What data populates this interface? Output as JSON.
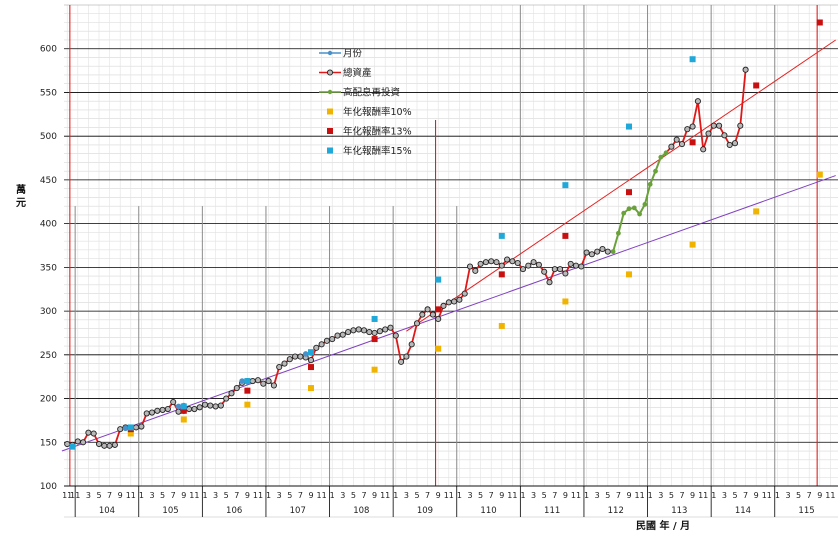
{
  "chart_data": {
    "type": "line",
    "title": "",
    "ylabel": "萬元",
    "xlabel": "民國 年 / 月",
    "ylim": [
      100,
      650
    ],
    "yticks": [
      100,
      150,
      200,
      250,
      300,
      350,
      400,
      450,
      500,
      550,
      600
    ],
    "grid": true,
    "legend_position": "top-center",
    "colors": {
      "total": "#e01818",
      "dividend": "#6aa13a",
      "monthly": "#4a90c8",
      "r10": "#f0b400",
      "r13": "#c81010",
      "r15": "#20a8d8",
      "trend_red": "#e82020",
      "trend_purple": "#8040c0"
    },
    "years": [
      "104",
      "105",
      "106",
      "107",
      "108",
      "109",
      "110",
      "111",
      "112",
      "113",
      "114",
      "115"
    ],
    "month_tick_labels": [
      "1",
      "3",
      "5",
      "7",
      "9",
      "11"
    ],
    "pre_tick_labels": [
      "11",
      "1"
    ],
    "legend": [
      {
        "key": "monthly",
        "label": "月份",
        "style": "line-dot"
      },
      {
        "key": "total",
        "label": "總資產",
        "style": "line-ring"
      },
      {
        "key": "dividend",
        "label": "高配息再投資",
        "style": "line-dot"
      },
      {
        "key": "r10",
        "label": "年化報酬率10%",
        "style": "square"
      },
      {
        "key": "r13",
        "label": "年化報酬率13%",
        "style": "square"
      },
      {
        "key": "r15",
        "label": "年化報酬率15%",
        "style": "square"
      }
    ],
    "x_note": "x values are month indexes counted from 103/11 (0 = 103/11)",
    "total_assets": [
      148,
      147,
      151,
      150,
      161,
      160,
      148,
      146,
      146,
      147,
      165,
      167,
      166,
      167,
      168,
      183,
      184,
      186,
      187,
      188,
      196,
      185,
      186,
      188,
      188,
      190,
      193,
      192,
      191,
      192,
      200,
      206,
      212,
      218,
      220,
      220,
      221,
      217,
      220,
      215,
      236,
      240,
      245,
      248,
      248,
      247,
      244,
      258,
      262,
      266,
      268,
      272,
      273,
      276,
      278,
      279,
      278,
      276,
      275,
      277,
      279,
      281,
      272,
      242,
      248,
      262,
      286,
      296,
      302,
      296,
      291,
      306,
      310,
      311,
      313,
      320,
      351,
      346,
      354,
      356,
      357,
      356,
      352,
      359,
      357,
      355,
      348,
      352,
      356,
      353,
      345,
      333,
      348,
      348,
      343,
      354,
      352,
      351,
      367,
      365,
      368,
      371,
      368
    ],
    "dividend_reinvest": [
      {
        "x": 103,
        "y": 368
      },
      {
        "x": 104,
        "y": 389
      },
      {
        "x": 105,
        "y": 412
      },
      {
        "x": 106,
        "y": 417
      },
      {
        "x": 107,
        "y": 418
      },
      {
        "x": 108,
        "y": 411
      },
      {
        "x": 109,
        "y": 422
      },
      {
        "x": 110,
        "y": 445
      },
      {
        "x": 111,
        "y": 460
      },
      {
        "x": 112,
        "y": 476
      },
      {
        "x": 113,
        "y": 481
      }
    ],
    "total_assets_late": [
      {
        "x": 113,
        "y": 481
      },
      {
        "x": 114,
        "y": 488
      },
      {
        "x": 115,
        "y": 496
      },
      {
        "x": 116,
        "y": 491
      },
      {
        "x": 117,
        "y": 508
      },
      {
        "x": 118,
        "y": 511
      },
      {
        "x": 119,
        "y": 540
      },
      {
        "x": 120,
        "y": 485
      },
      {
        "x": 121,
        "y": 503
      },
      {
        "x": 122,
        "y": 512
      },
      {
        "x": 123,
        "y": 512
      },
      {
        "x": 124,
        "y": 501
      },
      {
        "x": 125,
        "y": 490
      },
      {
        "x": 126,
        "y": 492
      },
      {
        "x": 127,
        "y": 512
      },
      {
        "x": 128,
        "y": 576
      }
    ],
    "monthly_points": [
      {
        "x": 1,
        "y": 145
      },
      {
        "x": 11,
        "y": 166
      },
      {
        "x": 12,
        "y": 167
      },
      {
        "x": 21,
        "y": 191
      },
      {
        "x": 22,
        "y": 192
      },
      {
        "x": 33,
        "y": 220
      },
      {
        "x": 34,
        "y": 219
      },
      {
        "x": 45,
        "y": 251
      },
      {
        "x": 46,
        "y": 252
      }
    ],
    "return_10": [
      {
        "x": 12,
        "y": 160
      },
      {
        "x": 22,
        "y": 176
      },
      {
        "x": 34,
        "y": 193
      },
      {
        "x": 46,
        "y": 212
      },
      {
        "x": 58,
        "y": 233
      },
      {
        "x": 70,
        "y": 257
      },
      {
        "x": 82,
        "y": 283
      },
      {
        "x": 94,
        "y": 311
      },
      {
        "x": 106,
        "y": 342
      },
      {
        "x": 118,
        "y": 376
      },
      {
        "x": 130,
        "y": 414
      },
      {
        "x": 142,
        "y": 456
      }
    ],
    "return_13": [
      {
        "x": 12,
        "y": 165
      },
      {
        "x": 22,
        "y": 186
      },
      {
        "x": 34,
        "y": 209
      },
      {
        "x": 46,
        "y": 236
      },
      {
        "x": 58,
        "y": 268
      },
      {
        "x": 70,
        "y": 302
      },
      {
        "x": 82,
        "y": 342
      },
      {
        "x": 94,
        "y": 386
      },
      {
        "x": 106,
        "y": 436
      },
      {
        "x": 118,
        "y": 493
      },
      {
        "x": 130,
        "y": 558
      },
      {
        "x": 142,
        "y": 630
      }
    ],
    "return_15": [
      {
        "x": 1,
        "y": 145
      },
      {
        "x": 12,
        "y": 167
      },
      {
        "x": 22,
        "y": 191
      },
      {
        "x": 34,
        "y": 220
      },
      {
        "x": 46,
        "y": 253
      },
      {
        "x": 58,
        "y": 291
      },
      {
        "x": 70,
        "y": 336
      },
      {
        "x": 82,
        "y": 386
      },
      {
        "x": 94,
        "y": 444
      },
      {
        "x": 106,
        "y": 511
      },
      {
        "x": 118,
        "y": 588
      }
    ],
    "trend_lines": [
      {
        "key": "trend_purple",
        "x1": -1,
        "y1": 140,
        "x2": 145,
        "y2": 455
      },
      {
        "key": "trend_red",
        "x1": 64,
        "y1": 277,
        "x2": 145,
        "y2": 610
      }
    ],
    "red_markers_x": [
      1,
      70,
      142
    ]
  }
}
